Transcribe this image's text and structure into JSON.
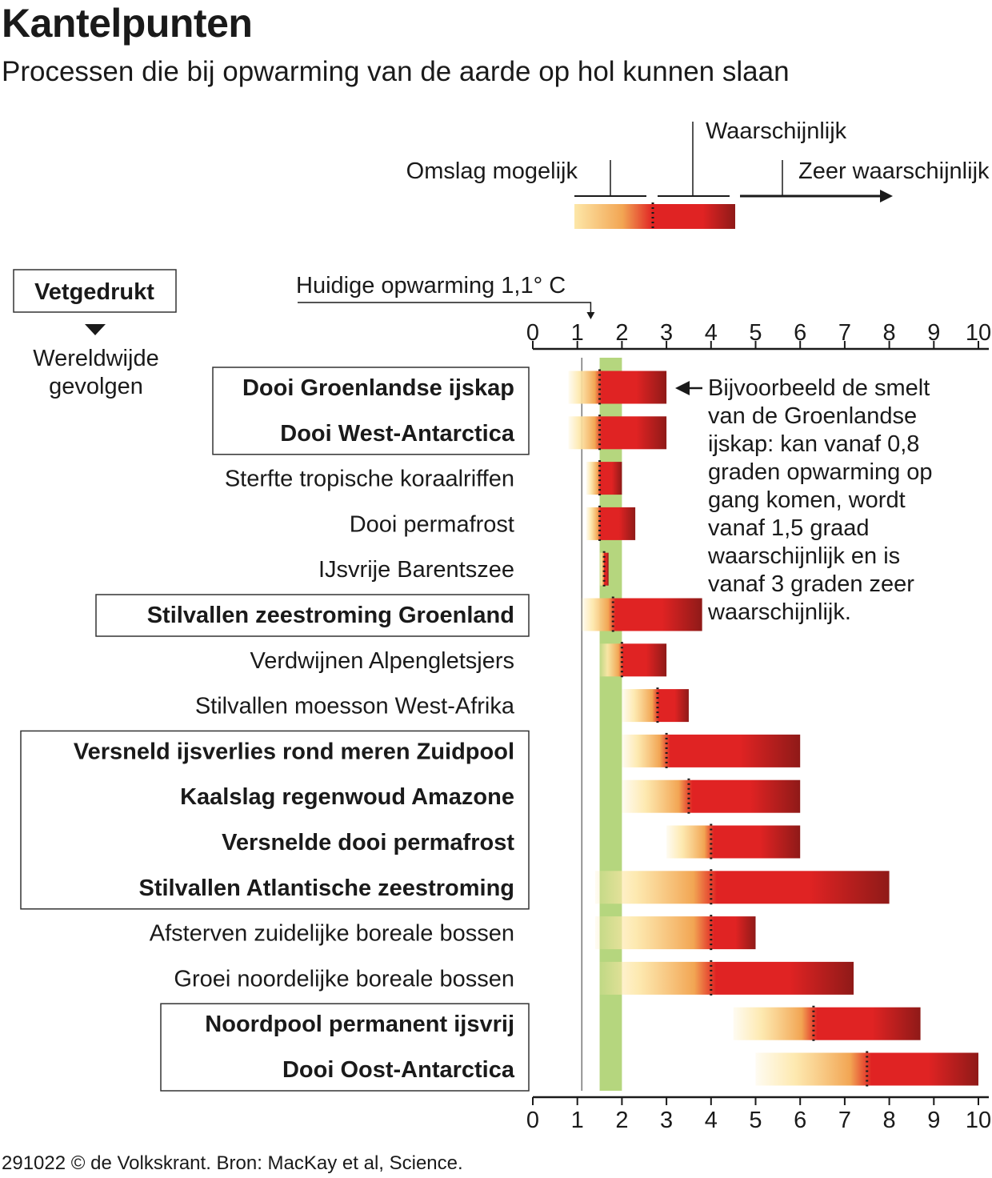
{
  "title": "Kantelpunten",
  "subtitle": "Processen die bij opwarming van de aarde op hol kunnen slaan",
  "legend": {
    "possible": "Omslag mogelijk",
    "likely": "Waarschijnlijk",
    "very_likely": "Zeer waarschijnlijk",
    "bold_box": "Vetgedrukt",
    "global_effects": "Wereldwijde gevolgen",
    "current_warming": "Huidige opwarming 1,1° C"
  },
  "annotation": [
    "Bijvoorbeeld de smelt",
    "van de Groenlandse",
    "ijskap: kan vanaf 0,8",
    "graden opwarming op",
    "gang komen, wordt",
    "vanaf 1,5 graad",
    "waarschijnlijk en is",
    "vanaf 3 graden zeer",
    "waarschijnlijk."
  ],
  "source": "291022 © de Volkskrant. Bron: MacKay et al, Science.",
  "chart_data": {
    "type": "bar",
    "xlim": [
      0,
      10
    ],
    "xticks": [
      "0",
      "1",
      "2",
      "3",
      "4",
      "5",
      "6",
      "7",
      "8",
      "9",
      "10"
    ],
    "current_warming": 1.1,
    "paris_band": [
      1.5,
      2.0
    ],
    "colors": {
      "light": "#fde7a8",
      "orange": "#f2a553",
      "red": "#e02323",
      "dark": "#8f1a18",
      "band": "#b5d67e"
    },
    "series": [
      {
        "name": "Dooi Groenlandse ijskap",
        "min": 0.8,
        "estimate": 1.5,
        "max": 3.0,
        "global": true
      },
      {
        "name": "Dooi West-Antarctica",
        "min": 0.8,
        "estimate": 1.5,
        "max": 3.0,
        "global": true
      },
      {
        "name": "Sterfte tropische koraalriffen",
        "min": 1.2,
        "estimate": 1.5,
        "max": 2.0,
        "global": false
      },
      {
        "name": "Dooi permafrost",
        "min": 1.2,
        "estimate": 1.5,
        "max": 2.3,
        "global": false
      },
      {
        "name": "IJsvrije Barentszee",
        "min": 1.5,
        "estimate": 1.6,
        "max": 1.7,
        "global": false
      },
      {
        "name": "Stilvallen zeestroming Groenland",
        "min": 1.1,
        "estimate": 1.8,
        "max": 3.8,
        "global": true
      },
      {
        "name": "Verdwijnen Alpengletsjers",
        "min": 1.5,
        "estimate": 2.0,
        "max": 3.0,
        "global": false
      },
      {
        "name": "Stilvallen moesson West-Afrika",
        "min": 2.0,
        "estimate": 2.8,
        "max": 3.5,
        "global": false
      },
      {
        "name": "Versneld ijsverlies rond meren Zuidpool",
        "min": 2.0,
        "estimate": 3.0,
        "max": 6.0,
        "global": true
      },
      {
        "name": "Kaalslag regenwoud Amazone",
        "min": 2.0,
        "estimate": 3.5,
        "max": 6.0,
        "global": true
      },
      {
        "name": "Versnelde dooi permafrost",
        "min": 3.0,
        "estimate": 4.0,
        "max": 6.0,
        "global": true
      },
      {
        "name": "Stilvallen Atlantische zeestroming",
        "min": 1.4,
        "estimate": 4.0,
        "max": 8.0,
        "global": true
      },
      {
        "name": "Afsterven zuidelijke boreale bossen",
        "min": 1.4,
        "estimate": 4.0,
        "max": 5.0,
        "global": false
      },
      {
        "name": "Groei noordelijke boreale bossen",
        "min": 1.5,
        "estimate": 4.0,
        "max": 7.2,
        "global": false
      },
      {
        "name": "Noordpool permanent ijsvrij",
        "min": 4.5,
        "estimate": 6.3,
        "max": 8.7,
        "global": true
      },
      {
        "name": "Dooi Oost-Antarctica",
        "min": 5.0,
        "estimate": 7.5,
        "max": 10.0,
        "global": true
      }
    ]
  }
}
